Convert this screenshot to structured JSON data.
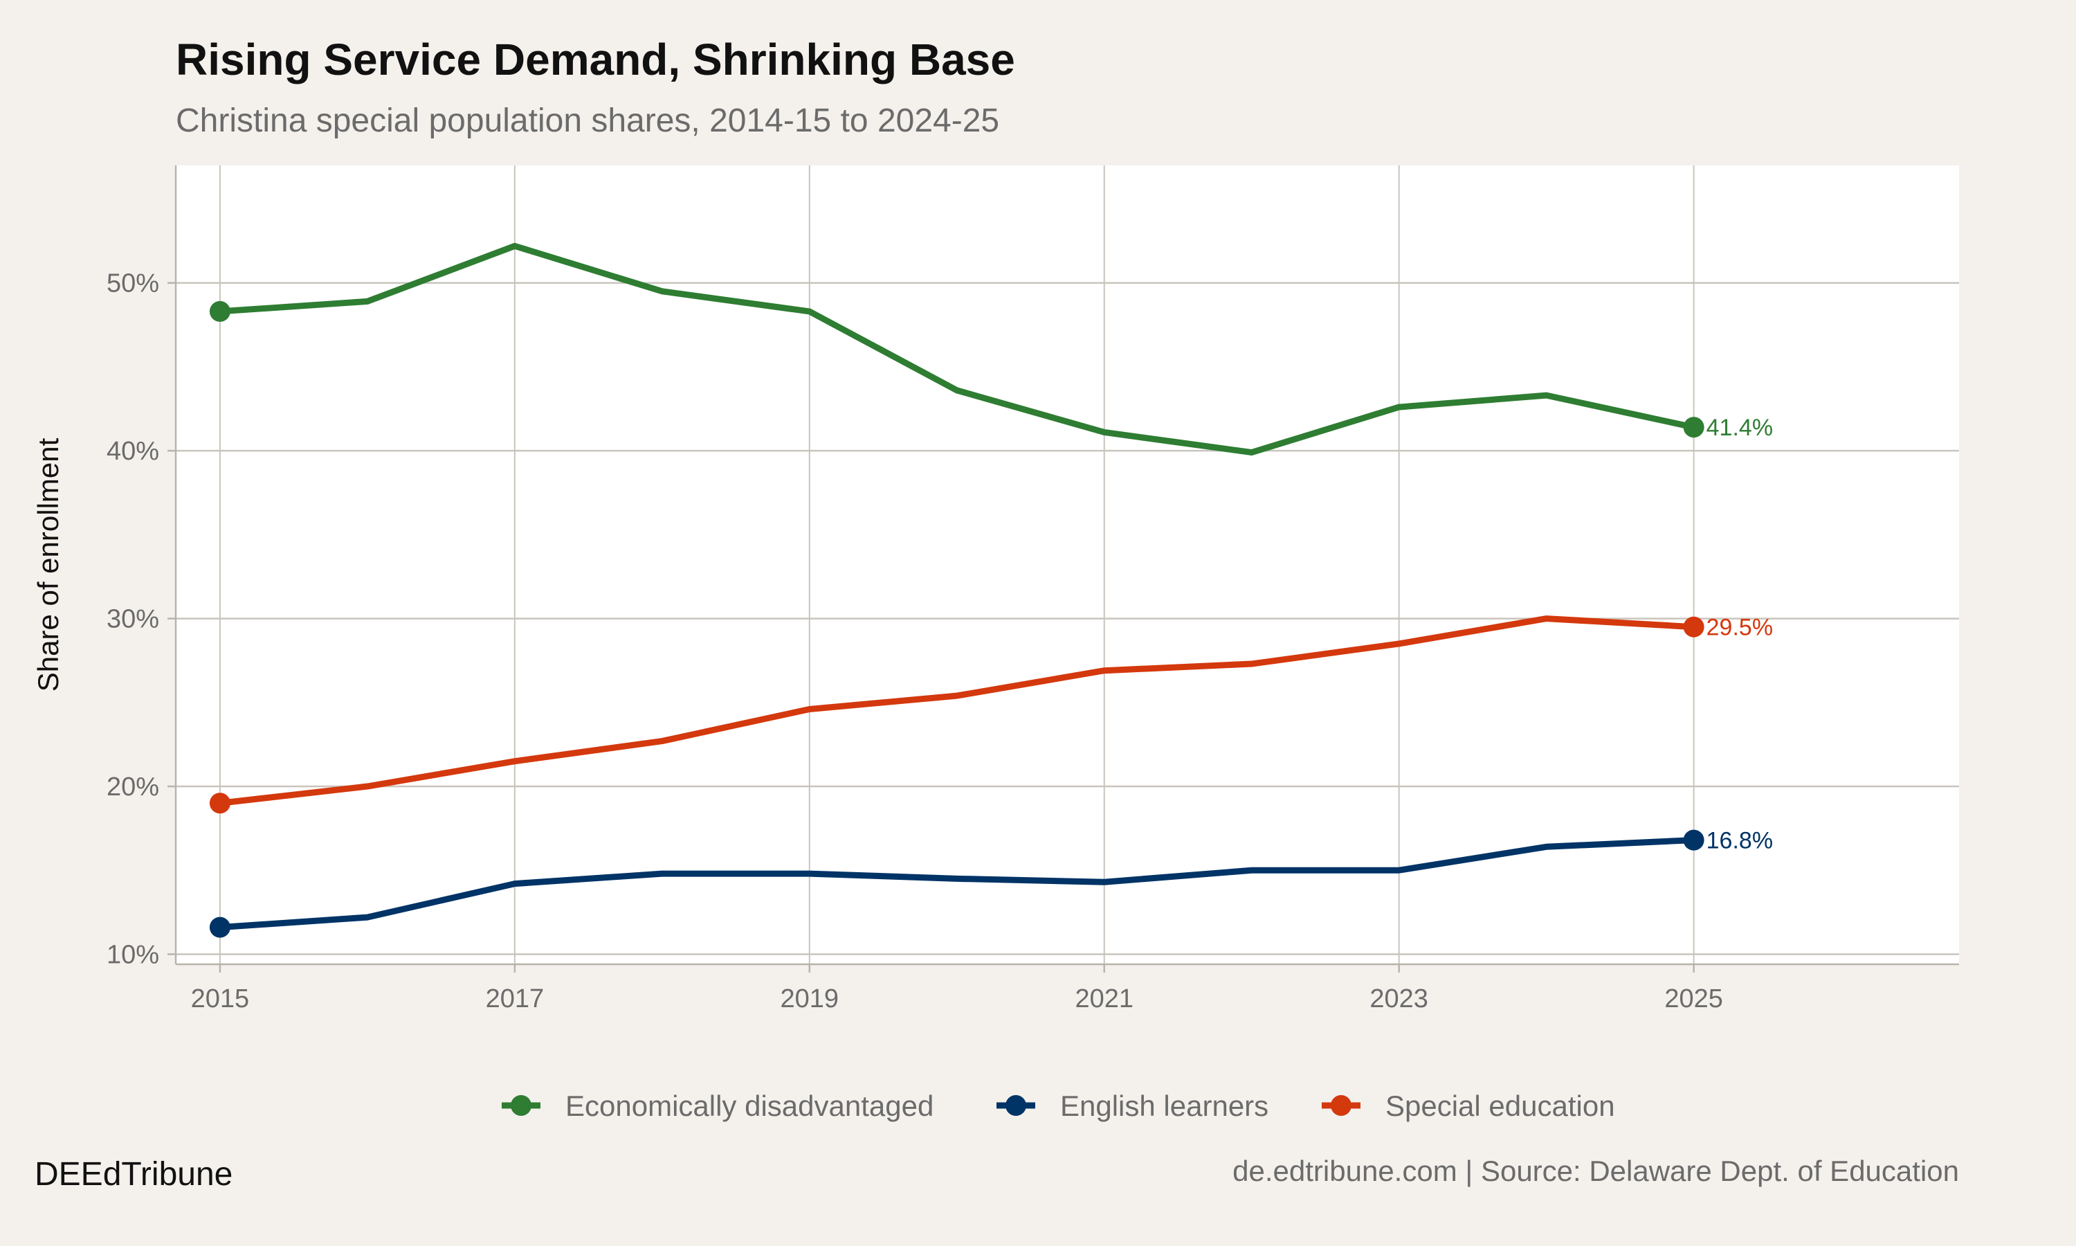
{
  "title": "Rising Service Demand, Shrinking Base",
  "subtitle": "Christina special population shares, 2014-15 to 2024-25",
  "footer": {
    "brand": "DEEdTribune",
    "source": "de.edtribune.com | Source: Delaware Dept. of Education"
  },
  "chart_data": {
    "type": "line",
    "title": "Rising Service Demand, Shrinking Base",
    "subtitle": "Christina special population shares, 2014-15 to 2024-25",
    "xlabel": "",
    "ylabel": "Share of enrollment",
    "x": [
      2015,
      2016,
      2017,
      2018,
      2019,
      2020,
      2021,
      2022,
      2023,
      2024,
      2025
    ],
    "xticks": [
      "2015",
      "2017",
      "2019",
      "2021",
      "2023",
      "2025"
    ],
    "yticks": [
      "10%",
      "20%",
      "30%",
      "40%",
      "50%"
    ],
    "xlim": [
      2014.7,
      2026.8
    ],
    "ylim": [
      9.4,
      57.0
    ],
    "grid": true,
    "legend_position": "bottom",
    "series": [
      {
        "name": "Economically disadvantaged",
        "color": "#2e7d32",
        "values": [
          48.3,
          48.9,
          52.2,
          49.5,
          48.3,
          43.6,
          41.1,
          39.9,
          42.6,
          43.3,
          41.4
        ],
        "end_label": "41.4%"
      },
      {
        "name": "English learners",
        "color": "#003366",
        "values": [
          11.6,
          12.2,
          14.2,
          14.8,
          14.8,
          14.5,
          14.3,
          15.0,
          15.0,
          16.4,
          16.8
        ],
        "end_label": "16.8%"
      },
      {
        "name": "Special education",
        "color": "#d4380d",
        "values": [
          19.0,
          20.0,
          21.5,
          22.7,
          24.6,
          25.4,
          26.9,
          27.3,
          28.5,
          30.0,
          29.5
        ],
        "end_label": "29.5%"
      }
    ]
  }
}
